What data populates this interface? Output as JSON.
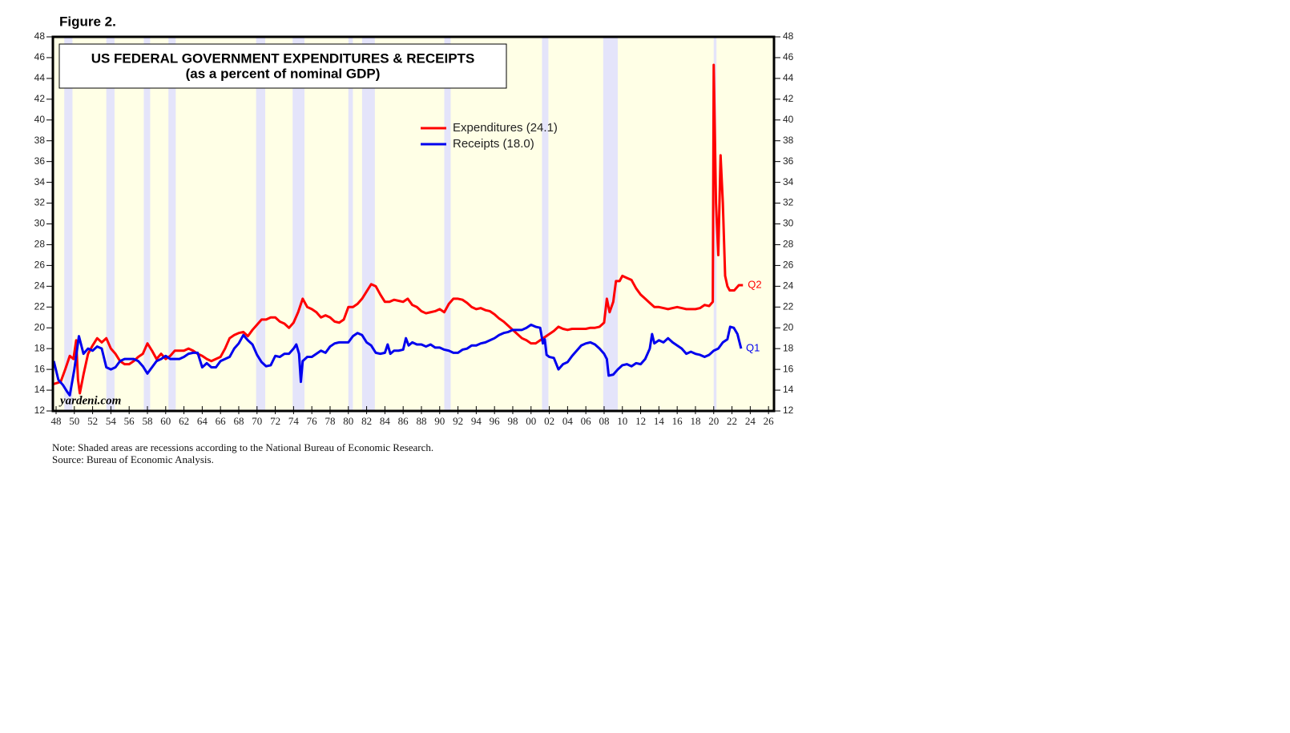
{
  "figure_label": "Figure 2.",
  "chart_data": {
    "type": "line",
    "title": "US FEDERAL GOVERNMENT EXPENDITURES & RECEIPTS",
    "subtitle": "(as a percent of nominal GDP)",
    "source_mark": "yardeni.com",
    "notes": [
      "Note: Shaded areas are recessions according to the National Bureau of Economic Research.",
      "Source: Bureau of Economic Analysis."
    ],
    "xlim": [
      1947.65,
      2026.6
    ],
    "ylim": [
      12,
      48
    ],
    "yticks": [
      12,
      14,
      16,
      18,
      20,
      22,
      24,
      26,
      28,
      30,
      32,
      34,
      36,
      38,
      40,
      42,
      44,
      46,
      48
    ],
    "xticks": [
      {
        "value": 1948,
        "label": "48"
      },
      {
        "value": 1950,
        "label": "50"
      },
      {
        "value": 1952,
        "label": "52"
      },
      {
        "value": 1954,
        "label": "54"
      },
      {
        "value": 1956,
        "label": "56"
      },
      {
        "value": 1958,
        "label": "58"
      },
      {
        "value": 1960,
        "label": "60"
      },
      {
        "value": 1962,
        "label": "62"
      },
      {
        "value": 1964,
        "label": "64"
      },
      {
        "value": 1966,
        "label": "66"
      },
      {
        "value": 1968,
        "label": "68"
      },
      {
        "value": 1970,
        "label": "70"
      },
      {
        "value": 1972,
        "label": "72"
      },
      {
        "value": 1974,
        "label": "74"
      },
      {
        "value": 1976,
        "label": "76"
      },
      {
        "value": 1978,
        "label": "78"
      },
      {
        "value": 1980,
        "label": "80"
      },
      {
        "value": 1982,
        "label": "82"
      },
      {
        "value": 1984,
        "label": "84"
      },
      {
        "value": 1986,
        "label": "86"
      },
      {
        "value": 1988,
        "label": "88"
      },
      {
        "value": 1990,
        "label": "90"
      },
      {
        "value": 1992,
        "label": "92"
      },
      {
        "value": 1994,
        "label": "94"
      },
      {
        "value": 1996,
        "label": "96"
      },
      {
        "value": 1998,
        "label": "98"
      },
      {
        "value": 2000,
        "label": "00"
      },
      {
        "value": 2002,
        "label": "02"
      },
      {
        "value": 2004,
        "label": "04"
      },
      {
        "value": 2006,
        "label": "06"
      },
      {
        "value": 2008,
        "label": "08"
      },
      {
        "value": 2010,
        "label": "10"
      },
      {
        "value": 2012,
        "label": "12"
      },
      {
        "value": 2014,
        "label": "14"
      },
      {
        "value": 2016,
        "label": "16"
      },
      {
        "value": 2018,
        "label": "18"
      },
      {
        "value": 2020,
        "label": "20"
      },
      {
        "value": 2022,
        "label": "22"
      },
      {
        "value": 2024,
        "label": "24"
      },
      {
        "value": 2026,
        "label": "26"
      }
    ],
    "recessions": [
      [
        1948.9,
        1949.8
      ],
      [
        1953.5,
        1954.4
      ],
      [
        1957.6,
        1958.3
      ],
      [
        1960.3,
        1961.1
      ],
      [
        1969.9,
        1970.9
      ],
      [
        1973.9,
        1975.2
      ],
      [
        1980.0,
        1980.5
      ],
      [
        1981.5,
        1982.9
      ],
      [
        1990.5,
        1991.2
      ],
      [
        2001.2,
        2001.9
      ],
      [
        2007.9,
        2009.5
      ],
      [
        2020.0,
        2020.3
      ]
    ],
    "recession_color": "#e4e4fa",
    "background": "#ffffe6",
    "series": [
      {
        "name": "Expenditures (24.1)",
        "color": "#ff0000",
        "end_label": "Q2",
        "x": [
          1947.75,
          1948.5,
          1949,
          1949.5,
          1949.9,
          1950.2,
          1950.4,
          1950.6,
          1951,
          1951.5,
          1952,
          1952.5,
          1953,
          1953.5,
          1954,
          1954.5,
          1955,
          1955.5,
          1956,
          1956.5,
          1957,
          1957.5,
          1958,
          1958.5,
          1959,
          1959.5,
          1960,
          1960.5,
          1961,
          1961.5,
          1962,
          1962.5,
          1963,
          1963.5,
          1964,
          1964.5,
          1965,
          1965.5,
          1966,
          1966.5,
          1967,
          1967.5,
          1968,
          1968.5,
          1969,
          1969.5,
          1970,
          1970.5,
          1971,
          1971.5,
          1972,
          1972.5,
          1973,
          1973.5,
          1974,
          1974.5,
          1975,
          1975.5,
          1976,
          1976.5,
          1977,
          1977.5,
          1978,
          1978.5,
          1979,
          1979.5,
          1980,
          1980.5,
          1981,
          1981.5,
          1982,
          1982.5,
          1983,
          1983.5,
          1984,
          1984.5,
          1985,
          1985.5,
          1986,
          1986.5,
          1987,
          1987.5,
          1988,
          1988.5,
          1989,
          1989.5,
          1990,
          1990.5,
          1991,
          1991.5,
          1992,
          1992.5,
          1993,
          1993.5,
          1994,
          1994.5,
          1995,
          1995.5,
          1996,
          1996.5,
          1997,
          1997.5,
          1998,
          1998.5,
          1999,
          1999.5,
          2000,
          2000.5,
          2001,
          2001.5,
          2002,
          2002.5,
          2003,
          2003.5,
          2004,
          2004.5,
          2005,
          2005.5,
          2006,
          2006.5,
          2007,
          2007.5,
          2008,
          2008.3,
          2008.6,
          2009,
          2009.3,
          2009.7,
          2010,
          2010.5,
          2011,
          2011.5,
          2012,
          2012.5,
          2013,
          2013.5,
          2014,
          2014.5,
          2015,
          2015.5,
          2016,
          2016.5,
          2017,
          2017.5,
          2018,
          2018.5,
          2019,
          2019.5,
          2019.9,
          2020.0,
          2020.25,
          2020.5,
          2020.75,
          2021,
          2021.25,
          2021.5,
          2021.75,
          2022.25,
          2022.75,
          2023.2
        ],
        "values": [
          14.6,
          14.8,
          16,
          17.3,
          17,
          18.8,
          15,
          13.7,
          15.5,
          17.5,
          18.3,
          19,
          18.6,
          19,
          18,
          17.5,
          16.8,
          16.5,
          16.5,
          16.8,
          17.2,
          17.5,
          18.5,
          17.8,
          17,
          17.5,
          17,
          17.3,
          17.8,
          17.8,
          17.8,
          18,
          17.8,
          17.5,
          17.3,
          17,
          16.8,
          17,
          17.2,
          18,
          19,
          19.3,
          19.5,
          19.6,
          19.2,
          19.8,
          20.3,
          20.8,
          20.8,
          21,
          21,
          20.6,
          20.4,
          20,
          20.5,
          21.5,
          22.8,
          22,
          21.8,
          21.5,
          21,
          21.2,
          21,
          20.6,
          20.5,
          20.8,
          22,
          22,
          22.3,
          22.8,
          23.5,
          24.2,
          24,
          23.2,
          22.5,
          22.5,
          22.7,
          22.6,
          22.5,
          22.8,
          22.2,
          22,
          21.6,
          21.4,
          21.5,
          21.6,
          21.8,
          21.5,
          22.3,
          22.8,
          22.8,
          22.7,
          22.4,
          22,
          21.8,
          21.9,
          21.7,
          21.6,
          21.3,
          20.9,
          20.6,
          20.2,
          19.8,
          19.4,
          19,
          18.8,
          18.5,
          18.5,
          18.8,
          19.1,
          19.4,
          19.7,
          20.1,
          19.9,
          19.8,
          19.9,
          19.9,
          19.9,
          19.9,
          20,
          20,
          20.1,
          20.5,
          22.8,
          21.5,
          22.5,
          24.5,
          24.5,
          25,
          24.8,
          24.6,
          23.8,
          23.2,
          22.8,
          22.4,
          22,
          22,
          21.9,
          21.8,
          21.9,
          22,
          21.9,
          21.8,
          21.8,
          21.8,
          21.9,
          22.2,
          22.1,
          22.5,
          45.3,
          32,
          27,
          36.6,
          32,
          25,
          24,
          23.6,
          23.6,
          24.1,
          24.1
        ]
      },
      {
        "name": "Receipts (18.0)",
        "color": "#0000ee",
        "end_label": "Q1",
        "x": [
          1947.75,
          1948.25,
          1948.75,
          1949.25,
          1949.5,
          1950,
          1950.5,
          1951,
          1951.5,
          1952,
          1952.5,
          1953,
          1953.5,
          1954,
          1954.5,
          1955,
          1955.5,
          1956,
          1956.5,
          1957,
          1957.5,
          1958,
          1958.5,
          1959,
          1959.5,
          1960,
          1960.5,
          1961,
          1961.5,
          1962,
          1962.5,
          1963,
          1963.5,
          1964,
          1964.5,
          1965,
          1965.5,
          1966,
          1966.5,
          1967,
          1967.5,
          1968,
          1968.5,
          1969,
          1969.5,
          1970,
          1970.5,
          1971,
          1971.5,
          1972,
          1972.5,
          1973,
          1973.5,
          1974,
          1974.3,
          1974.6,
          1974.8,
          1975,
          1975.5,
          1976,
          1976.5,
          1977,
          1977.5,
          1978,
          1978.5,
          1979,
          1979.5,
          1980,
          1980.5,
          1981,
          1981.5,
          1982,
          1982.5,
          1983,
          1983.5,
          1984,
          1984.3,
          1984.6,
          1985,
          1985.5,
          1986,
          1986.3,
          1986.6,
          1987,
          1987.5,
          1988,
          1988.5,
          1989,
          1989.5,
          1990,
          1990.5,
          1991,
          1991.5,
          1992,
          1992.5,
          1993,
          1993.5,
          1994,
          1994.5,
          1995,
          1995.5,
          1996,
          1996.5,
          1997,
          1997.5,
          1998,
          1998.5,
          1999,
          1999.5,
          2000,
          2000.5,
          2001,
          2001.3,
          2001.5,
          2001.7,
          2002,
          2002.5,
          2003,
          2003.5,
          2004,
          2004.5,
          2005,
          2005.5,
          2006,
          2006.5,
          2007,
          2007.5,
          2008,
          2008.3,
          2008.5,
          2009,
          2009.5,
          2010,
          2010.5,
          2011,
          2011.5,
          2012,
          2012.5,
          2013,
          2013.25,
          2013.5,
          2014,
          2014.5,
          2015,
          2015.5,
          2016,
          2016.5,
          2017,
          2017.5,
          2018,
          2018.5,
          2019,
          2019.5,
          2020,
          2020.5,
          2021,
          2021.5,
          2021.8,
          2022.2,
          2022.6,
          2023
        ],
        "values": [
          16.8,
          15,
          14.5,
          13.8,
          13.5,
          16,
          19.2,
          17.5,
          18,
          17.8,
          18.2,
          18,
          16.2,
          16,
          16.2,
          16.8,
          17,
          17,
          17,
          16.8,
          16.3,
          15.6,
          16.2,
          16.8,
          17,
          17.3,
          17,
          17,
          17,
          17.2,
          17.5,
          17.6,
          17.6,
          16.2,
          16.6,
          16.2,
          16.2,
          16.8,
          17,
          17.2,
          18,
          18.5,
          19.3,
          18.8,
          18.4,
          17.4,
          16.7,
          16.3,
          16.4,
          17.3,
          17.2,
          17.5,
          17.5,
          18,
          18.4,
          17.5,
          14.8,
          16.8,
          17.2,
          17.2,
          17.5,
          17.8,
          17.6,
          18.2,
          18.5,
          18.6,
          18.6,
          18.6,
          19.2,
          19.5,
          19.3,
          18.6,
          18.3,
          17.6,
          17.5,
          17.6,
          18.4,
          17.5,
          17.8,
          17.8,
          17.9,
          19,
          18.3,
          18.6,
          18.4,
          18.4,
          18.2,
          18.4,
          18.1,
          18.1,
          17.9,
          17.8,
          17.6,
          17.6,
          17.9,
          18,
          18.3,
          18.3,
          18.5,
          18.6,
          18.8,
          19,
          19.3,
          19.5,
          19.6,
          19.8,
          19.8,
          19.8,
          20,
          20.3,
          20.1,
          20,
          18.5,
          18.9,
          17.4,
          17.2,
          17.1,
          16,
          16.5,
          16.7,
          17.3,
          17.8,
          18.3,
          18.5,
          18.6,
          18.4,
          18,
          17.5,
          17,
          15.4,
          15.5,
          16,
          16.4,
          16.5,
          16.3,
          16.6,
          16.5,
          17,
          18,
          19.4,
          18.5,
          18.8,
          18.6,
          19,
          18.6,
          18.3,
          18,
          17.5,
          17.7,
          17.5,
          17.4,
          17.2,
          17.4,
          17.8,
          18,
          18.6,
          18.9,
          20.1,
          20,
          19.4,
          18
        ]
      }
    ]
  }
}
